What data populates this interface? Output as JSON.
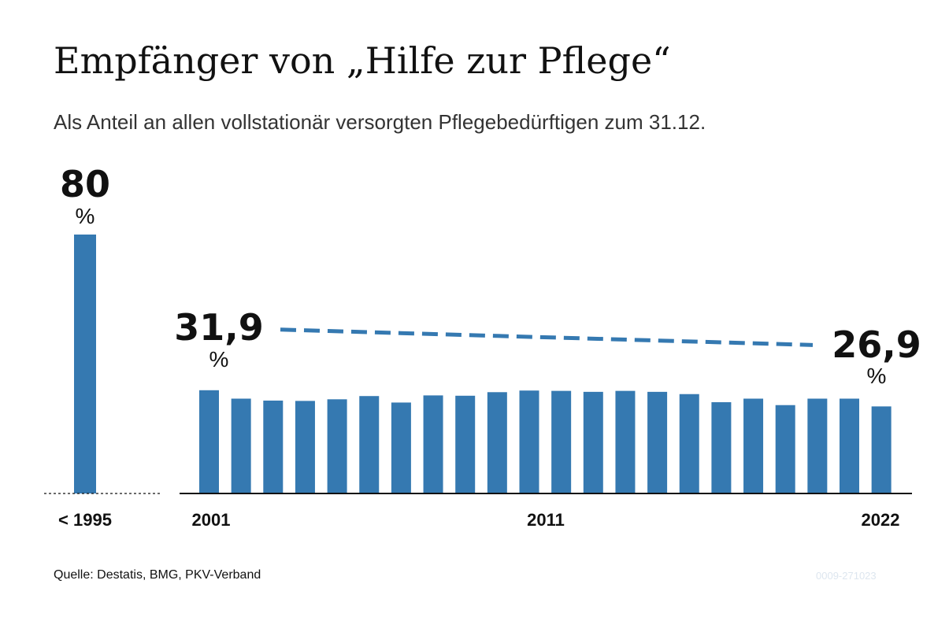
{
  "title": "Empfänger von „Hilfe zur Pflege“",
  "subtitle": "Als Anteil an allen vollstationär versorgten Pflegebedürftigen zum 31.12.",
  "source": "Quelle: Destatis, BMG, PKV-Verband",
  "graphic_id": "0009-271023",
  "colors": {
    "bar": "#3579b1",
    "text": "#111111",
    "axis": "#111111"
  },
  "chart_data": {
    "type": "bar",
    "ylim": [
      0,
      80
    ],
    "before_1995": {
      "label": "< 1995",
      "value": 80,
      "value_label": "80",
      "unit": "%"
    },
    "series_2001_2022": {
      "x": [
        2001,
        2002,
        2003,
        2004,
        2005,
        2006,
        2007,
        2008,
        2009,
        2010,
        2011,
        2012,
        2013,
        2014,
        2015,
        2016,
        2017,
        2018,
        2019,
        2020,
        2021,
        2022
      ],
      "values": [
        31.9,
        29.3,
        28.7,
        28.6,
        29.1,
        30.1,
        28.1,
        30.3,
        30.2,
        31.3,
        31.8,
        31.7,
        31.4,
        31.7,
        31.4,
        30.7,
        28.2,
        29.3,
        27.3,
        29.3,
        29.3,
        26.9
      ]
    },
    "tick_labels": [
      "2001",
      "2011",
      "2022"
    ],
    "annotations": {
      "start": {
        "value": "31,9",
        "unit": "%"
      },
      "end": {
        "value": "26,9",
        "unit": "%"
      }
    },
    "trend_line": {
      "from": 31.9,
      "to": 26.9,
      "style": "dashed"
    },
    "grid": false
  }
}
